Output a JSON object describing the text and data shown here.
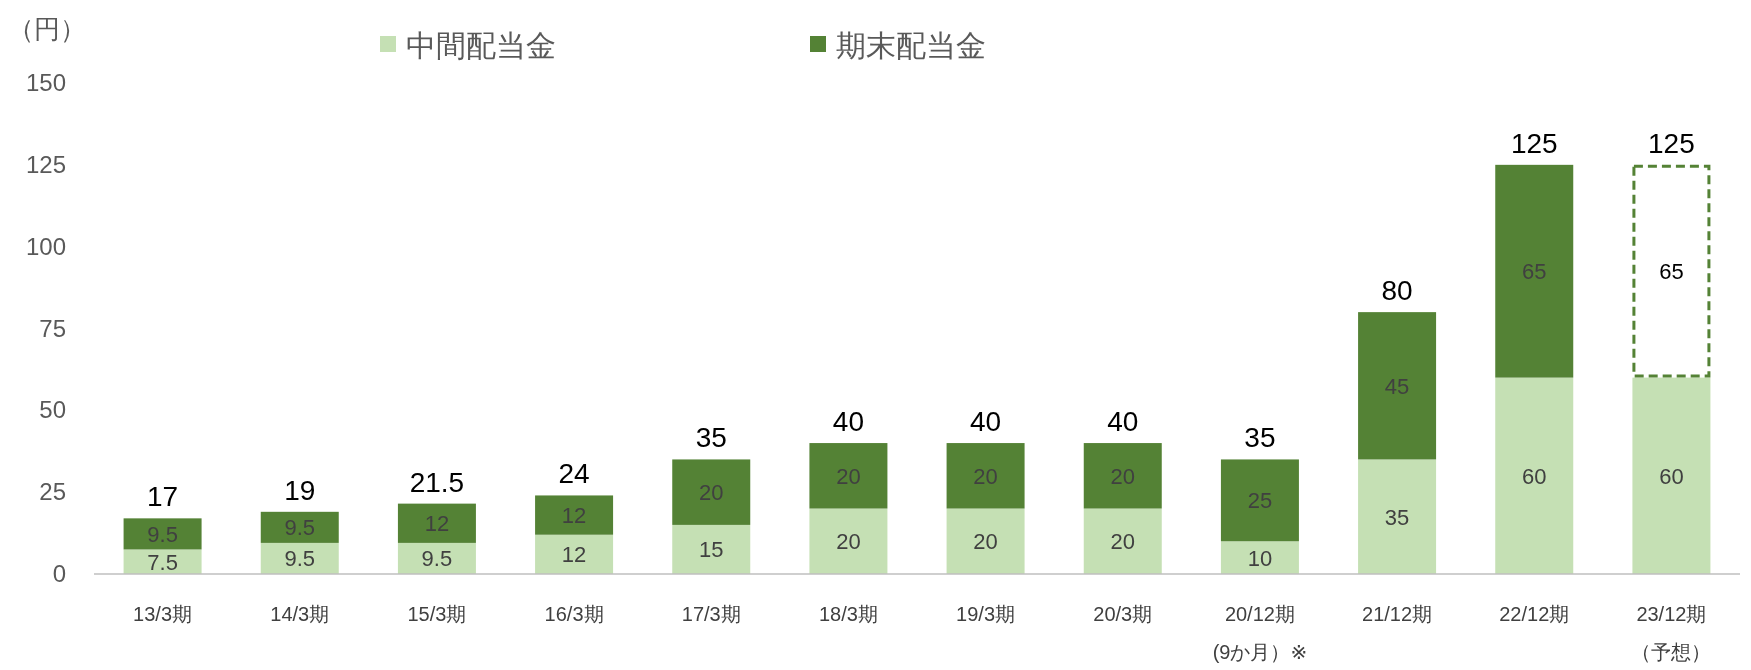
{
  "chart_data": {
    "type": "bar",
    "stacked": true,
    "ylabel": "（円）",
    "categories": [
      "13/3期",
      "14/3期",
      "15/3期",
      "16/3期",
      "17/3期",
      "18/3期",
      "19/3期",
      "20/3期",
      "20/12期\n(9か月）※",
      "21/12期",
      "22/12期",
      "23/12期（予想）"
    ],
    "series": [
      {
        "name": "中間配当金",
        "color": "#c5e0b4",
        "values": [
          7.5,
          9.5,
          9.5,
          12,
          15,
          20,
          20,
          20,
          10,
          35,
          60,
          60
        ]
      },
      {
        "name": "期末配当金",
        "color": "#548235",
        "colors": [
          "#548235",
          "#548235",
          "#548235",
          "#548235",
          "#548235",
          "#548235",
          "#548235",
          "#548235",
          "#548235",
          "#548235",
          "#548235",
          "#ffffff"
        ],
        "line_style": "dashed",
        "values": [
          9.5,
          9.5,
          12,
          12,
          20,
          20,
          20,
          20,
          25,
          45,
          65,
          65
        ]
      }
    ],
    "totals": [
      "17",
      "19",
      "21.5",
      "24",
      "35",
      "40",
      "40",
      "40",
      "35",
      "80",
      "125",
      "125"
    ],
    "data_labels": true,
    "ylim": [
      0,
      150
    ],
    "yticks": [
      0,
      25,
      50,
      75,
      100,
      125,
      150
    ],
    "grid": false,
    "legend": "top"
  }
}
